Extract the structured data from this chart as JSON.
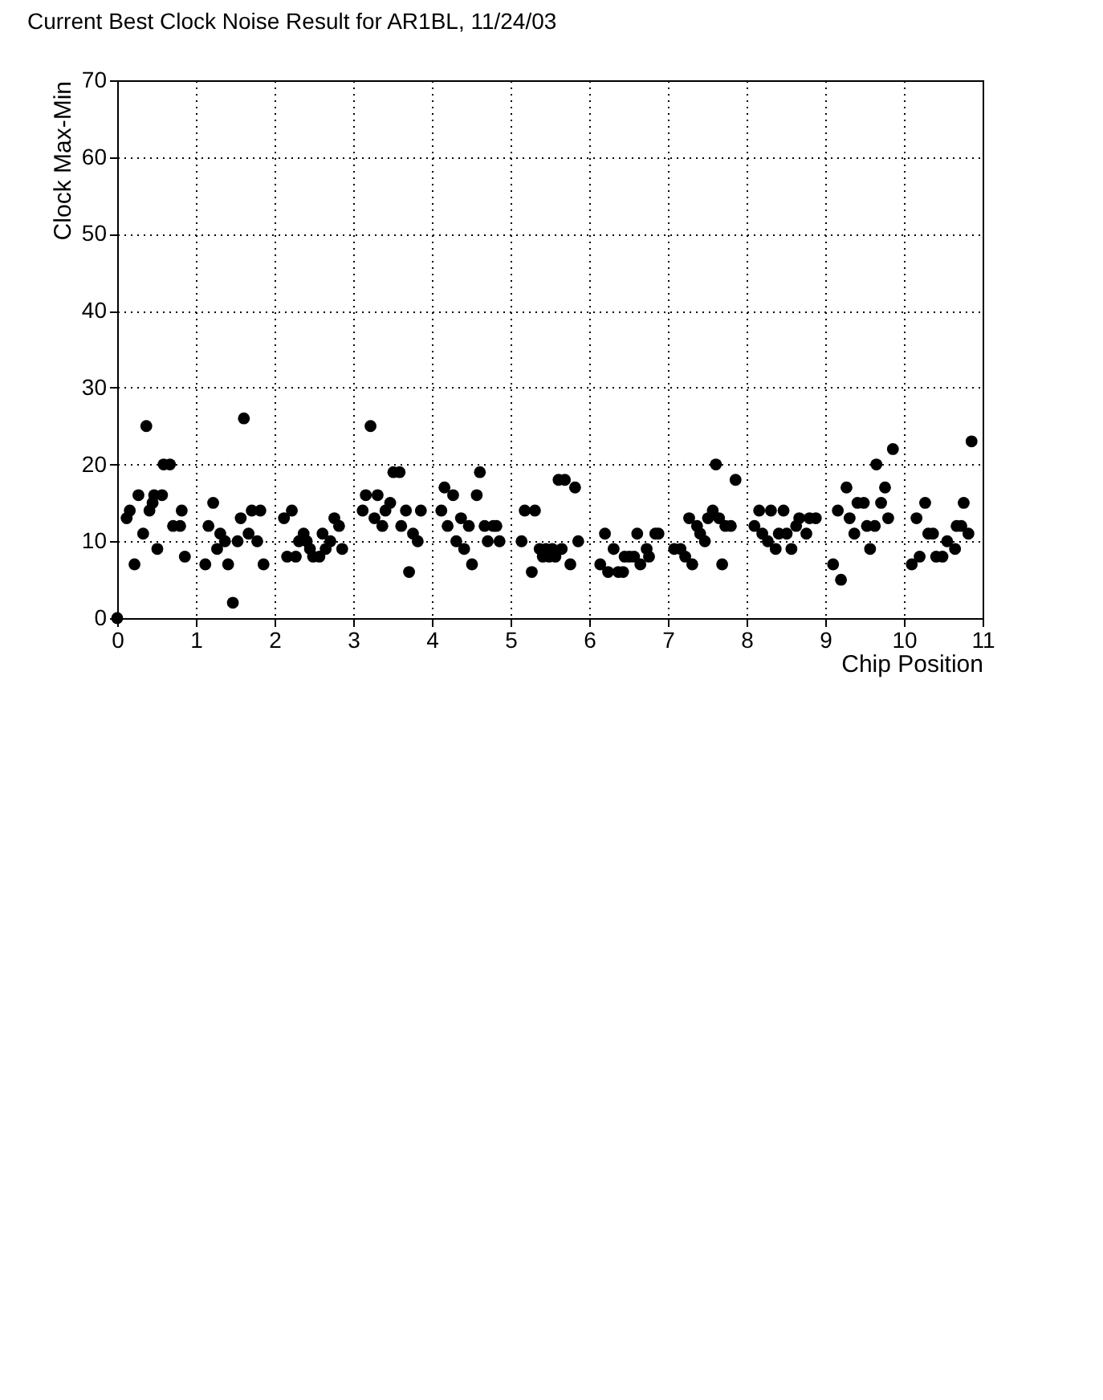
{
  "chart_data": {
    "type": "scatter",
    "title": "Current Best Clock Noise Result for AR1BL, 11/24/03",
    "xlabel": "Chip Position",
    "ylabel": "Clock Max-Min",
    "x": [
      0,
      0.12,
      0.16,
      0.22,
      0.27,
      0.33,
      0.37,
      0.41,
      0.45,
      0.47,
      0.51,
      0.57,
      0.59,
      0.67,
      0.71,
      0.8,
      0.82,
      0.86,
      1.12,
      1.16,
      1.22,
      1.27,
      1.31,
      1.37,
      1.41,
      1.47,
      1.53,
      1.57,
      1.61,
      1.67,
      1.71,
      1.78,
      1.82,
      1.86,
      2.12,
      2.16,
      2.22,
      2.27,
      2.31,
      2.37,
      2.41,
      2.45,
      2.49,
      2.57,
      2.61,
      2.65,
      2.71,
      2.76,
      2.82,
      2.86,
      3.12,
      3.16,
      3.22,
      3.27,
      3.31,
      3.37,
      3.41,
      3.47,
      3.51,
      3.59,
      3.61,
      3.67,
      3.71,
      3.76,
      3.82,
      3.86,
      4.12,
      4.16,
      4.2,
      4.27,
      4.31,
      4.37,
      4.41,
      4.47,
      4.51,
      4.57,
      4.61,
      4.67,
      4.71,
      4.78,
      4.82,
      4.86,
      5.14,
      5.18,
      5.27,
      5.31,
      5.37,
      5.41,
      5.45,
      5.49,
      5.53,
      5.57,
      5.61,
      5.65,
      5.69,
      5.76,
      5.82,
      5.86,
      6.14,
      6.2,
      6.24,
      6.31,
      6.37,
      6.43,
      6.45,
      6.51,
      6.57,
      6.61,
      6.65,
      6.73,
      6.76,
      6.84,
      6.88,
      7.08,
      7.16,
      7.22,
      7.27,
      7.31,
      7.37,
      7.41,
      7.47,
      7.51,
      7.57,
      7.61,
      7.65,
      7.69,
      7.73,
      7.8,
      7.86,
      8.1,
      8.16,
      8.2,
      8.27,
      8.31,
      8.37,
      8.41,
      8.47,
      8.51,
      8.57,
      8.63,
      8.67,
      8.76,
      8.8,
      8.88,
      9.1,
      9.16,
      9.2,
      9.27,
      9.31,
      9.37,
      9.41,
      9.49,
      9.53,
      9.57,
      9.63,
      9.65,
      9.71,
      9.76,
      9.8,
      9.86,
      10.1,
      10.16,
      10.2,
      10.27,
      10.31,
      10.37,
      10.41,
      10.49,
      10.55,
      10.65,
      10.67,
      10.73,
      10.76,
      10.82,
      10.86
    ],
    "values": [
      0,
      13,
      14,
      7,
      16,
      11,
      25,
      14,
      15,
      16,
      9,
      16,
      20,
      20,
      12,
      12,
      14,
      8,
      7,
      12,
      15,
      9,
      11,
      10,
      7,
      2,
      10,
      13,
      26,
      11,
      14,
      10,
      14,
      7,
      13,
      8,
      14,
      8,
      10,
      11,
      10,
      9,
      8,
      8,
      11,
      9,
      10,
      13,
      12,
      9,
      14,
      16,
      25,
      13,
      16,
      12,
      14,
      15,
      19,
      19,
      12,
      14,
      6,
      11,
      10,
      14,
      14,
      17,
      12,
      16,
      10,
      13,
      9,
      12,
      7,
      16,
      19,
      12,
      10,
      12,
      12,
      10,
      10,
      14,
      6,
      14,
      9,
      8,
      9,
      8,
      9,
      8,
      18,
      9,
      18,
      7,
      17,
      10,
      7,
      11,
      6,
      9,
      6,
      6,
      8,
      8,
      8,
      11,
      7,
      9,
      8,
      11,
      11,
      9,
      9,
      8,
      13,
      7,
      12,
      11,
      10,
      13,
      14,
      20,
      13,
      7,
      12,
      12,
      18,
      12,
      14,
      11,
      10,
      14,
      9,
      11,
      14,
      11,
      9,
      12,
      13,
      11,
      13,
      13,
      7,
      14,
      5,
      17,
      13,
      11,
      15,
      15,
      12,
      9,
      12,
      20,
      15,
      17,
      13,
      22,
      7,
      13,
      8,
      15,
      11,
      11,
      8,
      8,
      10,
      9,
      12,
      12,
      15,
      11,
      23
    ],
    "color": "#000000",
    "marker": "circle",
    "xlim": [
      0,
      11
    ],
    "ylim": [
      0,
      70
    ],
    "xticks": [
      0,
      1,
      2,
      3,
      4,
      5,
      6,
      7,
      8,
      9,
      10,
      11
    ],
    "yticks": [
      0,
      10,
      20,
      30,
      40,
      50,
      60,
      70
    ],
    "grid": true
  }
}
